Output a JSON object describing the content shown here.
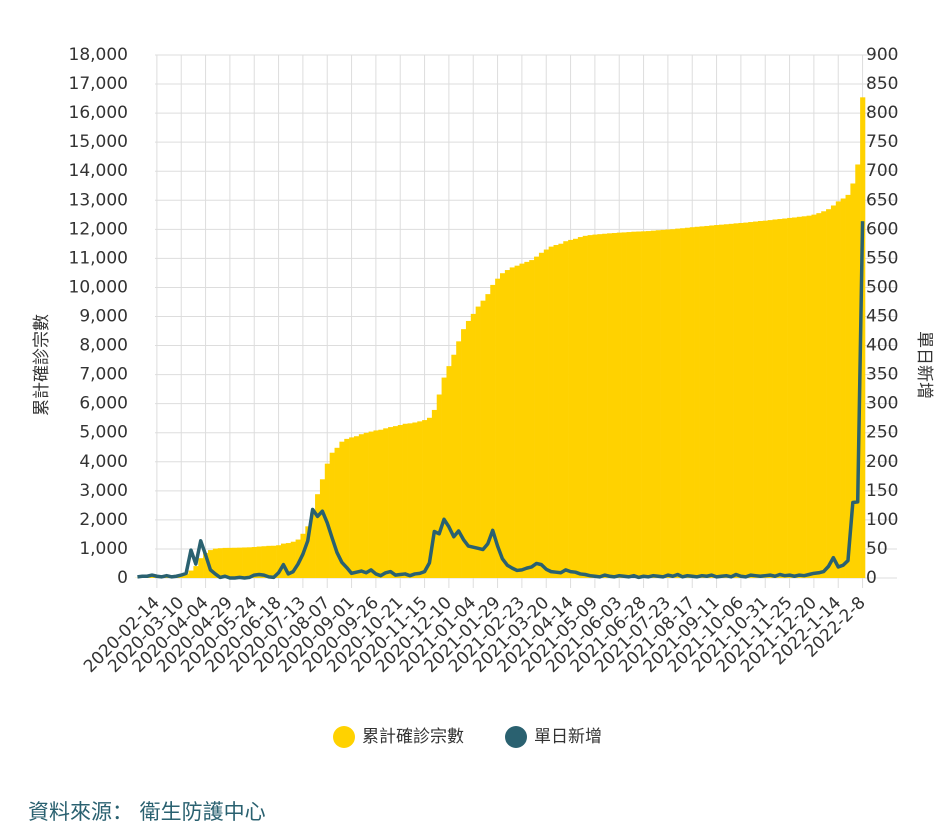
{
  "chart_data": {
    "type": "bar",
    "categories": [
      null,
      null,
      null,
      null,
      "2020-02-14",
      null,
      null,
      null,
      null,
      "2020-03-10",
      null,
      null,
      null,
      null,
      "2020-04-04",
      null,
      null,
      null,
      null,
      "2020-04-29",
      null,
      null,
      null,
      null,
      "2020-05-24",
      null,
      null,
      null,
      null,
      "2020-06-18",
      null,
      null,
      null,
      null,
      "2020-07-13",
      null,
      null,
      null,
      null,
      "2020-08-07",
      null,
      null,
      null,
      null,
      "2020-09-01",
      null,
      null,
      null,
      null,
      "2020-09-26",
      null,
      null,
      null,
      null,
      "2020-10-21",
      null,
      null,
      null,
      null,
      "2020-11-15",
      null,
      null,
      null,
      null,
      "2020-12-10",
      null,
      null,
      null,
      null,
      "2021-01-04",
      null,
      null,
      null,
      null,
      "2021-01-29",
      null,
      null,
      null,
      null,
      "2021-02-23",
      null,
      null,
      null,
      null,
      "2021-03-20",
      null,
      null,
      null,
      null,
      "2021-04-14",
      null,
      null,
      null,
      null,
      "2021-05-09",
      null,
      null,
      null,
      null,
      "2021-06-03",
      null,
      null,
      null,
      null,
      "2021-06-28",
      null,
      null,
      null,
      null,
      "2021-07-23",
      null,
      null,
      null,
      null,
      "2021-08-17",
      null,
      null,
      null,
      null,
      "2021-09-11",
      null,
      null,
      null,
      null,
      "2021-10-06",
      null,
      null,
      null,
      null,
      "2021-10-31",
      null,
      null,
      null,
      null,
      "2021-11-25",
      null,
      null,
      null,
      null,
      "2021-12-20",
      null,
      null,
      null,
      null,
      "2022-1-14",
      null,
      null,
      null,
      null,
      "2022-2-8"
    ],
    "series": [
      {
        "name": "累計確診宗數",
        "type": "bar",
        "color": "#ffd200",
        "values": [
          5,
          10,
          17,
          36,
          56,
          65,
          81,
          94,
          105,
          120,
          148,
          256,
          410,
          682,
          862,
          961,
          1012,
          1026,
          1036,
          1038,
          1041,
          1045,
          1051,
          1056,
          1066,
          1083,
          1094,
          1107,
          1110,
          1128,
          1184,
          1203,
          1249,
          1323,
          1522,
          1778,
          2250,
          2884,
          3397,
          3935,
          4312,
          4481,
          4692,
          4788,
          4839,
          4879,
          4948,
          4998,
          5039,
          5079,
          5103,
          5151,
          5194,
          5227,
          5265,
          5308,
          5323,
          5352,
          5391,
          5435,
          5514,
          5784,
          6315,
          6898,
          7292,
          7684,
          8145,
          8565,
          8847,
          9090,
          9341,
          9545,
          9770,
          10087,
          10302,
          10490,
          10599,
          10689,
          10749,
          10820,
          10880,
          10942,
          11061,
          11193,
          11305,
          11405,
          11460,
          11505,
          11591,
          11636,
          11675,
          11734,
          11776,
          11801,
          11819,
          11834,
          11848,
          11863,
          11873,
          11887,
          11895,
          11906,
          11919,
          11925,
          11932,
          11940,
          11954,
          11969,
          11981,
          11993,
          12004,
          12025,
          12038,
          12055,
          12073,
          12088,
          12102,
          12116,
          12133,
          12148,
          12161,
          12175,
          12189,
          12206,
          12219,
          12232,
          12251,
          12268,
          12287,
          12298,
          12318,
          12338,
          12355,
          12372,
          12393,
          12408,
          12431,
          12449,
          12470,
          12506,
          12557,
          12621,
          12693,
          12821,
          12962,
          13061,
          13186,
          13578,
          14232,
          16543
        ]
      },
      {
        "name": "單日新增",
        "type": "line",
        "axis": "y2",
        "color": "#2a6170",
        "values": [
          2,
          3,
          3,
          5,
          3,
          2,
          4,
          2,
          3,
          5,
          8,
          48,
          24,
          64,
          40,
          14,
          7,
          1,
          3,
          0,
          0,
          1,
          0,
          1,
          5,
          6,
          5,
          2,
          1,
          9,
          23,
          7,
          11,
          24,
          41,
          64,
          118,
          106,
          115,
          95,
          69,
          44,
          27,
          18,
          8,
          10,
          12,
          9,
          14,
          7,
          4,
          9,
          11,
          5,
          6,
          7,
          4,
          7,
          8,
          11,
          26,
          80,
          76,
          101,
          88,
          71,
          81,
          66,
          55,
          53,
          51,
          49,
          59,
          82,
          55,
          33,
          22,
          17,
          13,
          14,
          17,
          19,
          25,
          23,
          15,
          11,
          10,
          9,
          14,
          11,
          10,
          7,
          6,
          4,
          3,
          2,
          5,
          3,
          2,
          4,
          3,
          2,
          4,
          1,
          3,
          2,
          4,
          3,
          2,
          5,
          3,
          6,
          2,
          4,
          3,
          2,
          4,
          3,
          5,
          2,
          3,
          4,
          2,
          6,
          3,
          2,
          5,
          4,
          3,
          4,
          5,
          3,
          6,
          4,
          5,
          3,
          5,
          4,
          6,
          8,
          9,
          11,
          20,
          35,
          19,
          22,
          30,
          130,
          131,
          614
        ]
      }
    ],
    "ylabel": "累計確診宗數",
    "y2label": "單日新增",
    "ylim": [
      0,
      18000
    ],
    "yticks": [
      0,
      {
        "value": 1000,
        "label": "1,000"
      },
      {
        "value": 2000,
        "label": "2,000"
      },
      {
        "value": 3000,
        "label": "3,000"
      },
      {
        "value": 4000,
        "label": "4,000"
      },
      {
        "value": 5000,
        "label": "5,000"
      },
      {
        "value": 6000,
        "label": "6,000"
      },
      {
        "value": 7000,
        "label": "7,000"
      },
      {
        "value": 8000,
        "label": "8,000"
      },
      {
        "value": 9000,
        "label": "9,000"
      },
      {
        "value": 10000,
        "label": "10,000"
      },
      {
        "value": 11000,
        "label": "11,000"
      },
      {
        "value": 12000,
        "label": "12,000"
      },
      {
        "value": 13000,
        "label": "13,000"
      },
      {
        "value": 14000,
        "label": "14,000"
      },
      {
        "value": 15000,
        "label": "15,000"
      },
      {
        "value": 16000,
        "label": "16,000"
      },
      {
        "value": 17000,
        "label": "17,000"
      },
      {
        "value": 18000,
        "label": "18,000"
      }
    ],
    "y2lim": [
      0,
      900
    ],
    "y2ticks": [
      0,
      50,
      100,
      150,
      200,
      250,
      300,
      350,
      400,
      450,
      500,
      550,
      600,
      650,
      700,
      750,
      800,
      850,
      900
    ],
    "grid": true,
    "source": "資料來源： 衛生防護中心"
  }
}
